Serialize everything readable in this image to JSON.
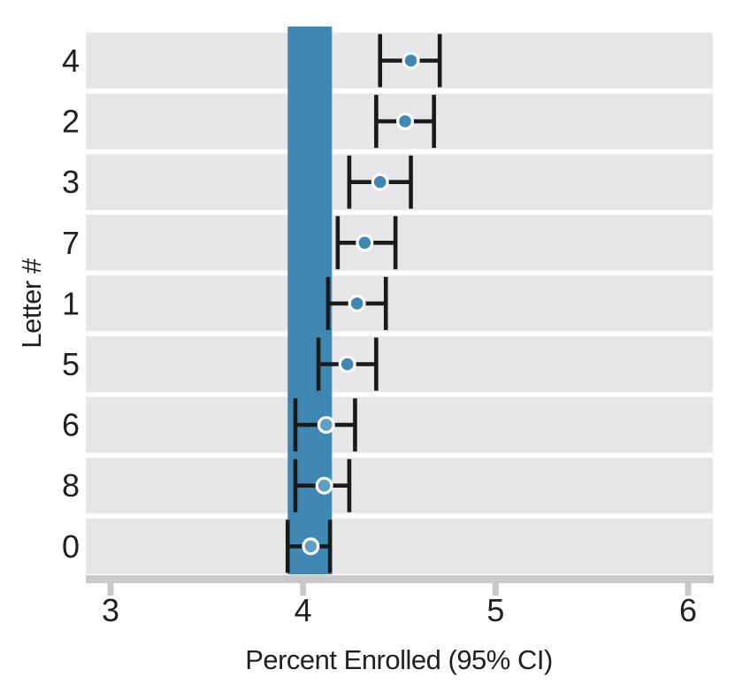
{
  "chart_data": {
    "type": "scatter",
    "subtype": "forest-dot-plot-with-ci",
    "title": "",
    "xlabel": "Percent Enrolled (95% CI)",
    "ylabel": "Letter #",
    "x_ticks": [
      3,
      4,
      5,
      6
    ],
    "xlim": [
      2.87,
      6.15
    ],
    "grid": "horizontal row stripes, no gridlines",
    "legend": "none",
    "categories": [
      "4",
      "2",
      "3",
      "7",
      "1",
      "5",
      "6",
      "8",
      "0"
    ],
    "points": [
      {
        "letter": "4",
        "value": 4.56,
        "ci_low": 4.4,
        "ci_high": 4.71,
        "marker": "filled"
      },
      {
        "letter": "2",
        "value": 4.53,
        "ci_low": 4.38,
        "ci_high": 4.68,
        "marker": "filled"
      },
      {
        "letter": "3",
        "value": 4.4,
        "ci_low": 4.24,
        "ci_high": 4.56,
        "marker": "filled"
      },
      {
        "letter": "7",
        "value": 4.32,
        "ci_low": 4.18,
        "ci_high": 4.48,
        "marker": "filled"
      },
      {
        "letter": "1",
        "value": 4.28,
        "ci_low": 4.13,
        "ci_high": 4.43,
        "marker": "filled"
      },
      {
        "letter": "5",
        "value": 4.23,
        "ci_low": 4.08,
        "ci_high": 4.38,
        "marker": "filled"
      },
      {
        "letter": "6",
        "value": 4.12,
        "ci_low": 3.96,
        "ci_high": 4.27,
        "marker": "open"
      },
      {
        "letter": "8",
        "value": 4.11,
        "ci_low": 3.96,
        "ci_high": 4.24,
        "marker": "open"
      },
      {
        "letter": "0",
        "value": 4.04,
        "ci_low": 3.92,
        "ci_high": 4.14,
        "marker": "open"
      }
    ],
    "reference_band": {
      "from": 3.92,
      "to": 4.15
    }
  },
  "colors": {
    "accent_blue": "#3F88B4",
    "open_marker_fill": "#5FA0C4",
    "marker_ring": "#FFFFFF",
    "row_stripe": "#E6E6E8",
    "axis_gray": "#C9C9CC",
    "errorbar": "#1A1A1A",
    "text": "#231F20",
    "background": "#FFFFFF"
  }
}
